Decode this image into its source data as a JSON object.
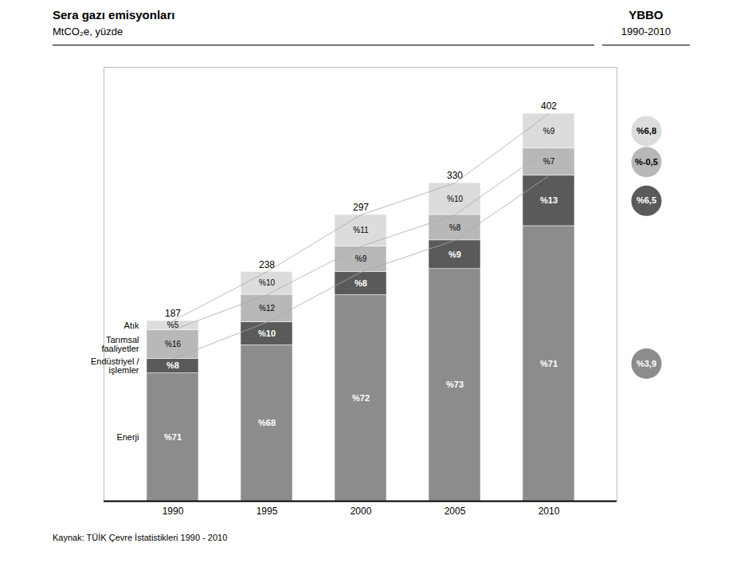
{
  "chart_data": {
    "type": "bar",
    "stacked": true,
    "title": "Sera gazı emisyonları",
    "subtitle": "MtCO₂e, yüzde",
    "caption": "Kaynak: TÜİK Çevre İstatistikleri 1990 - 2010",
    "annotations": [
      {
        "text": "YBBO"
      },
      {
        "text": "1990-2010"
      }
    ],
    "categories": [
      "1990",
      "1995",
      "2000",
      "2005",
      "2010"
    ],
    "ylim": [
      0,
      450
    ],
    "tick_labels": "x",
    "grid": false,
    "totals": [
      187,
      238,
      297,
      330,
      402
    ],
    "series": [
      {
        "name": "Enerji",
        "color": "#8c8c8c",
        "values": [
          132.77,
          161.84,
          213.84,
          240.9,
          285.42
        ],
        "shares": [
          71,
          68,
          72,
          73,
          71
        ],
        "share_labels": [
          "%71",
          "%68",
          "%72",
          "%73",
          "%71"
        ],
        "growth": 3.9,
        "growth_label": "%3,9"
      },
      {
        "name": "Endüstriyel /\nişlemler",
        "color": "#5a5a5a",
        "values": [
          14.96,
          23.8,
          23.76,
          29.7,
          52.26
        ],
        "shares": [
          8,
          10,
          8,
          9,
          13
        ],
        "share_labels": [
          "%8",
          "%10",
          "%8",
          "%9",
          "%13"
        ],
        "growth": 6.5,
        "growth_label": "%6,5"
      },
      {
        "name": "Tarımsal\nfaaliyetler",
        "color": "#b8b8b8",
        "values": [
          29.92,
          28.56,
          26.73,
          26.4,
          28.14
        ],
        "shares": [
          16,
          12,
          9,
          8,
          7
        ],
        "share_labels": [
          "%16",
          "%12",
          "%9",
          "%8",
          "%7"
        ],
        "growth": -0.5,
        "growth_label": "%-0,5"
      },
      {
        "name": "Atık",
        "color": "#dcdcdc",
        "values": [
          9.35,
          23.8,
          32.67,
          33,
          36.18
        ],
        "shares": [
          5,
          10,
          11,
          10,
          9
        ],
        "share_labels": [
          "%5",
          "%10",
          "%11",
          "%10",
          "%9"
        ],
        "growth": 6.8,
        "growth_label": "%6,8"
      }
    ]
  }
}
